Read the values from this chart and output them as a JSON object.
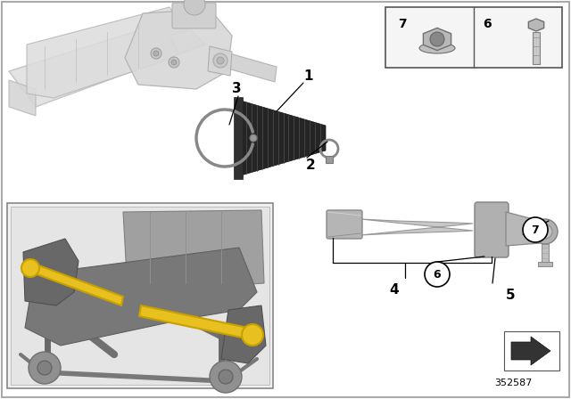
{
  "bg": "#ffffff",
  "part_number": "352587",
  "figsize": [
    6.4,
    4.48
  ],
  "dpi": 100,
  "rack_color": "#d8d8d8",
  "boot_color": "#2a2a2a",
  "rod_color": "#c0c0c0",
  "label_color": "#000000",
  "inset_bg": "#e8e8e8",
  "yellow": "#e8c020"
}
